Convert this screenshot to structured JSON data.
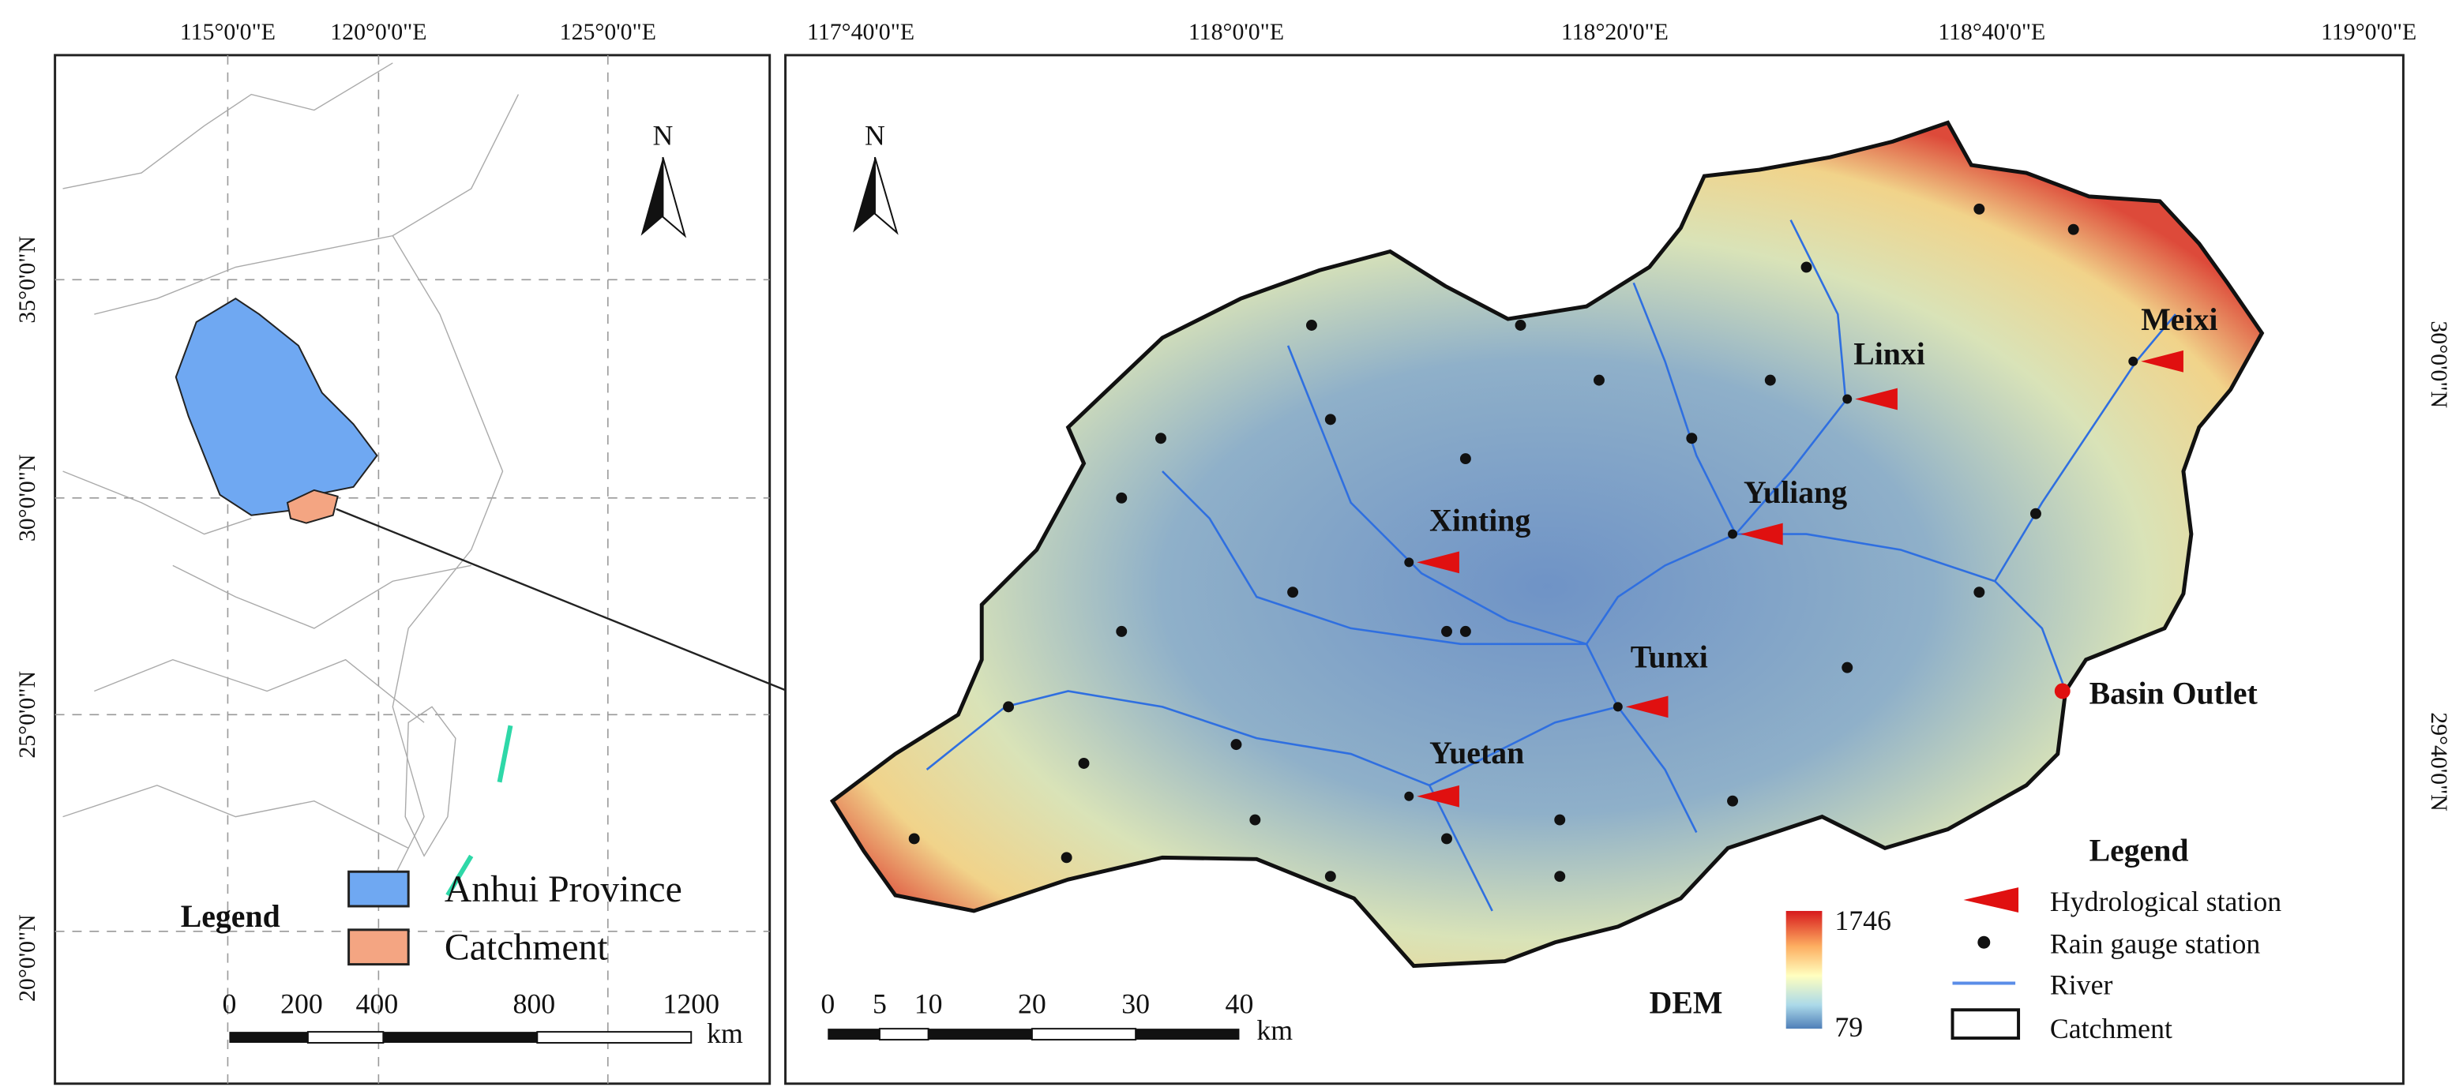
{
  "overview": {
    "lon_labels": [
      "115°0'0\"E",
      "120°0'0\"E",
      "125°0'0\"E"
    ],
    "lat_labels": [
      "35°0'0\"N",
      "30°0'0\"N",
      "25°0'0\"N",
      "20°0'0\"N"
    ],
    "north": "N",
    "legend": {
      "title": "Legend",
      "items": [
        "Anhui Province",
        "Catchment"
      ]
    },
    "scale": {
      "ticks": [
        "0",
        "200",
        "400",
        "800",
        "1200"
      ],
      "unit": "km"
    }
  },
  "basin": {
    "lon_labels": [
      "117°40'0\"E",
      "118°0'0\"E",
      "118°20'0\"E",
      "118°40'0\"E",
      "119°0'0\"E"
    ],
    "lat_labels": [
      "30°0'0\"N",
      "29°40'0\"N"
    ],
    "north": "N",
    "stations": [
      "Xinting",
      "Yuliang",
      "Linxi",
      "Meixi",
      "Tunxi",
      "Yuetan"
    ],
    "outlet": "Basin Outlet",
    "dem": {
      "title": "DEM",
      "max": "1746",
      "min": "79"
    },
    "legend": {
      "title": "Legend",
      "items": [
        "Hydrological station",
        "Rain gauge station",
        "River",
        "Catchment"
      ]
    },
    "scale": {
      "ticks": [
        "0",
        "5",
        "10",
        "20",
        "30",
        "40"
      ],
      "unit": "km"
    }
  }
}
